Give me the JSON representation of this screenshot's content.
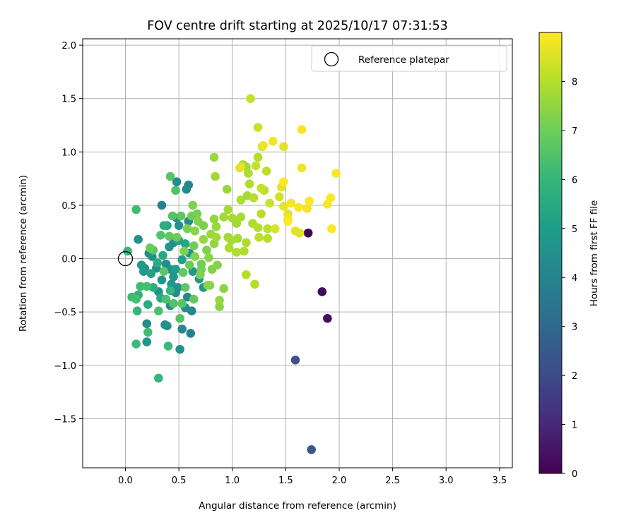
{
  "chart_data": {
    "type": "scatter",
    "title": "FOV centre drift starting at 2025/10/17 07:31:53",
    "xlabel": "Angular distance from reference (arcmin)",
    "ylabel": "Rotation from reference (arcmin)",
    "xlim": [
      -0.4,
      3.62
    ],
    "ylim": [
      -1.96,
      2.06
    ],
    "xticks": [
      0.0,
      0.5,
      1.0,
      1.5,
      2.0,
      2.5,
      3.0,
      3.5
    ],
    "yticks": [
      -1.5,
      -1.0,
      -0.5,
      0.0,
      0.5,
      1.0,
      1.5,
      2.0
    ],
    "xtick_labels": [
      "0.0",
      "0.5",
      "1.0",
      "1.5",
      "2.0",
      "2.5",
      "3.0",
      "3.5"
    ],
    "ytick_labels": [
      "−1.5",
      "−1.0",
      "−0.5",
      "0.0",
      "0.5",
      "1.0",
      "1.5",
      "2.0"
    ],
    "grid": true,
    "legend": {
      "position": "upper-right",
      "entries": [
        "Reference platepar"
      ]
    },
    "reference_point": {
      "x": 0.0,
      "y": 0.0,
      "label": "Reference platepar"
    },
    "colorbar": {
      "label": "Hours from first FF file",
      "colormap": "viridis",
      "range": [
        0,
        9
      ],
      "ticks": [
        0,
        1,
        2,
        3,
        4,
        5,
        6,
        7,
        8
      ],
      "tick_labels": [
        "0",
        "1",
        "2",
        "3",
        "4",
        "5",
        "6",
        "7",
        "8"
      ]
    },
    "points": [
      {
        "x": 1.71,
        "y": 0.24,
        "c": 0.1
      },
      {
        "x": 1.84,
        "y": -0.31,
        "c": 0.2
      },
      {
        "x": 1.89,
        "y": -0.56,
        "c": 0.3
      },
      {
        "x": 1.59,
        "y": -0.95,
        "c": 2.3
      },
      {
        "x": 1.74,
        "y": -1.79,
        "c": 2.5
      },
      {
        "x": 0.61,
        "y": -0.7,
        "c": 4.0
      },
      {
        "x": 0.62,
        "y": -0.49,
        "c": 4.2
      },
      {
        "x": 0.56,
        "y": -0.46,
        "c": 4.4
      },
      {
        "x": 0.51,
        "y": -0.85,
        "c": 4.5
      },
      {
        "x": 0.53,
        "y": -0.66,
        "c": 4.3
      },
      {
        "x": 0.42,
        "y": -0.44,
        "c": 4.4
      },
      {
        "x": 0.39,
        "y": -0.63,
        "c": 4.6
      },
      {
        "x": 0.37,
        "y": -0.62,
        "c": 4.5
      },
      {
        "x": 0.2,
        "y": -0.61,
        "c": 4.4
      },
      {
        "x": 0.2,
        "y": -0.78,
        "c": 4.7
      },
      {
        "x": 0.58,
        "y": -0.36,
        "c": 4.2
      },
      {
        "x": 0.34,
        "y": 0.5,
        "c": 4.0
      },
      {
        "x": 0.59,
        "y": 0.69,
        "c": 4.1
      },
      {
        "x": 0.57,
        "y": 0.65,
        "c": 4.3
      },
      {
        "x": 0.48,
        "y": 0.72,
        "c": 4.4
      },
      {
        "x": 0.59,
        "y": 0.35,
        "c": 4.3
      },
      {
        "x": 0.48,
        "y": 0.38,
        "c": 4.5
      },
      {
        "x": 0.5,
        "y": 0.31,
        "c": 4.6
      },
      {
        "x": 0.6,
        "y": 0.05,
        "c": 4.6
      },
      {
        "x": 0.45,
        "y": 0.15,
        "c": 4.4
      },
      {
        "x": 0.41,
        "y": 0.11,
        "c": 4.6
      },
      {
        "x": 0.22,
        "y": 0.05,
        "c": 4.4
      },
      {
        "x": 0.12,
        "y": 0.18,
        "c": 4.5
      },
      {
        "x": 0.25,
        "y": 0.02,
        "c": 4.6
      },
      {
        "x": 0.38,
        "y": -0.05,
        "c": 4.4
      },
      {
        "x": 0.42,
        "y": -0.1,
        "c": 4.5
      },
      {
        "x": 0.45,
        "y": -0.17,
        "c": 4.7
      },
      {
        "x": 0.49,
        "y": -0.27,
        "c": 4.6
      },
      {
        "x": 0.47,
        "y": -0.32,
        "c": 4.4
      },
      {
        "x": 0.43,
        "y": -0.24,
        "c": 4.8
      },
      {
        "x": 0.31,
        "y": -0.31,
        "c": 4.5
      },
      {
        "x": 0.34,
        "y": -0.2,
        "c": 4.7
      },
      {
        "x": 0.29,
        "y": -0.09,
        "c": 4.6
      },
      {
        "x": 0.18,
        "y": -0.09,
        "c": 4.5
      },
      {
        "x": 0.17,
        "y": -0.12,
        "c": 4.8
      },
      {
        "x": 0.15,
        "y": -0.06,
        "c": 4.9
      },
      {
        "x": 0.73,
        "y": -0.27,
        "c": 4.7
      },
      {
        "x": 0.63,
        "y": -0.12,
        "c": 4.8
      },
      {
        "x": 0.69,
        "y": -0.19,
        "c": 4.9
      },
      {
        "x": 0.47,
        "y": -0.1,
        "c": 5.0
      },
      {
        "x": 0.53,
        "y": -0.01,
        "c": 5.1
      },
      {
        "x": 0.5,
        "y": 0.17,
        "c": 5.2
      },
      {
        "x": 0.56,
        "y": 0.14,
        "c": 5.3
      },
      {
        "x": 0.35,
        "y": 0.03,
        "c": 5.4
      },
      {
        "x": 0.3,
        "y": -0.04,
        "c": 5.5
      },
      {
        "x": 0.24,
        "y": -0.14,
        "c": 5.2
      },
      {
        "x": 0.26,
        "y": -0.27,
        "c": 5.6
      },
      {
        "x": 0.33,
        "y": -0.37,
        "c": 5.4
      },
      {
        "x": 0.21,
        "y": -0.43,
        "c": 5.5
      },
      {
        "x": 0.12,
        "y": -0.34,
        "c": 5.8
      },
      {
        "x": 0.39,
        "y": 0.31,
        "c": 5.3
      },
      {
        "x": 0.36,
        "y": 0.31,
        "c": 5.6
      },
      {
        "x": 0.42,
        "y": -0.3,
        "c": 5.9
      },
      {
        "x": 0.02,
        "y": 0.07,
        "c": 6.0
      },
      {
        "x": 0.1,
        "y": 0.46,
        "c": 6.2
      },
      {
        "x": 0.06,
        "y": -0.36,
        "c": 6.1
      },
      {
        "x": 0.1,
        "y": -0.38,
        "c": 6.3
      },
      {
        "x": 0.11,
        "y": -0.49,
        "c": 6.0
      },
      {
        "x": 0.1,
        "y": -0.8,
        "c": 6.1
      },
      {
        "x": 0.21,
        "y": -0.69,
        "c": 6.2
      },
      {
        "x": 0.31,
        "y": -1.12,
        "c": 6.0
      },
      {
        "x": 0.4,
        "y": -0.82,
        "c": 6.1
      },
      {
        "x": 0.31,
        "y": -0.49,
        "c": 6.4
      },
      {
        "x": 0.14,
        "y": -0.26,
        "c": 6.2
      },
      {
        "x": 0.2,
        "y": -0.26,
        "c": 6.3
      },
      {
        "x": 0.38,
        "y": -0.38,
        "c": 6.4
      },
      {
        "x": 0.45,
        "y": -0.42,
        "c": 6.5
      },
      {
        "x": 0.53,
        "y": -0.42,
        "c": 6.6
      },
      {
        "x": 0.51,
        "y": -0.56,
        "c": 6.5
      },
      {
        "x": 0.56,
        "y": -0.27,
        "c": 6.7
      },
      {
        "x": 0.64,
        "y": -0.38,
        "c": 6.8
      },
      {
        "x": 0.42,
        "y": 0.77,
        "c": 6.6
      },
      {
        "x": 0.47,
        "y": 0.64,
        "c": 6.4
      },
      {
        "x": 0.44,
        "y": 0.4,
        "c": 6.5
      },
      {
        "x": 0.52,
        "y": 0.4,
        "c": 6.7
      },
      {
        "x": 0.33,
        "y": 0.22,
        "c": 6.5
      },
      {
        "x": 0.41,
        "y": 0.21,
        "c": 6.8
      },
      {
        "x": 0.48,
        "y": 0.2,
        "c": 6.9
      },
      {
        "x": 0.26,
        "y": 0.08,
        "c": 6.6
      },
      {
        "x": 0.23,
        "y": 0.1,
        "c": 6.9
      },
      {
        "x": 0.36,
        "y": -0.12,
        "c": 6.7
      },
      {
        "x": 0.54,
        "y": -0.13,
        "c": 6.8
      },
      {
        "x": 0.6,
        "y": -0.06,
        "c": 6.9
      },
      {
        "x": 0.64,
        "y": 0.12,
        "c": 7.0
      },
      {
        "x": 0.58,
        "y": 0.28,
        "c": 7.1
      },
      {
        "x": 0.55,
        "y": 0.07,
        "c": 7.2
      },
      {
        "x": 0.71,
        "y": -0.05,
        "c": 7.0
      },
      {
        "x": 0.71,
        "y": -0.1,
        "c": 7.1
      },
      {
        "x": 0.7,
        "y": -0.15,
        "c": 7.2
      },
      {
        "x": 0.79,
        "y": -0.25,
        "c": 7.3
      },
      {
        "x": 0.77,
        "y": -0.25,
        "c": 7.4
      },
      {
        "x": 0.81,
        "y": -0.1,
        "c": 7.3
      },
      {
        "x": 0.88,
        "y": -0.45,
        "c": 7.4
      },
      {
        "x": 0.88,
        "y": -0.39,
        "c": 7.5
      },
      {
        "x": 0.92,
        "y": -0.28,
        "c": 7.4
      },
      {
        "x": 0.86,
        "y": -0.06,
        "c": 7.3
      },
      {
        "x": 0.63,
        "y": 0.5,
        "c": 7.2
      },
      {
        "x": 0.62,
        "y": 0.4,
        "c": 7.0
      },
      {
        "x": 0.67,
        "y": 0.42,
        "c": 7.1
      },
      {
        "x": 0.68,
        "y": 0.35,
        "c": 7.3
      },
      {
        "x": 0.73,
        "y": 0.31,
        "c": 7.2
      },
      {
        "x": 0.65,
        "y": 0.26,
        "c": 7.4
      },
      {
        "x": 0.73,
        "y": 0.18,
        "c": 7.5
      },
      {
        "x": 0.76,
        "y": 0.08,
        "c": 7.2
      },
      {
        "x": 0.78,
        "y": 0.01,
        "c": 7.4
      },
      {
        "x": 0.65,
        "y": 0.02,
        "c": 7.3
      },
      {
        "x": 0.83,
        "y": 0.37,
        "c": 7.5
      },
      {
        "x": 0.8,
        "y": 0.23,
        "c": 7.6
      },
      {
        "x": 0.83,
        "y": 0.14,
        "c": 7.5
      },
      {
        "x": 0.85,
        "y": 0.2,
        "c": 7.7
      },
      {
        "x": 0.85,
        "y": 0.3,
        "c": 7.6
      },
      {
        "x": 0.83,
        "y": 0.95,
        "c": 7.6
      },
      {
        "x": 0.84,
        "y": 0.77,
        "c": 7.7
      },
      {
        "x": 0.95,
        "y": 0.65,
        "c": 7.6
      },
      {
        "x": 0.92,
        "y": 0.39,
        "c": 7.7
      },
      {
        "x": 0.96,
        "y": 0.46,
        "c": 7.8
      },
      {
        "x": 1.0,
        "y": 0.38,
        "c": 7.8
      },
      {
        "x": 0.96,
        "y": 0.2,
        "c": 7.7
      },
      {
        "x": 0.99,
        "y": 0.17,
        "c": 7.8
      },
      {
        "x": 0.97,
        "y": 0.1,
        "c": 7.9
      },
      {
        "x": 1.04,
        "y": 0.06,
        "c": 7.9
      },
      {
        "x": 1.08,
        "y": 0.39,
        "c": 7.8
      },
      {
        "x": 1.13,
        "y": 0.15,
        "c": 7.9
      },
      {
        "x": 1.04,
        "y": 0.33,
        "c": 7.7
      },
      {
        "x": 1.05,
        "y": 0.19,
        "c": 7.8
      },
      {
        "x": 1.11,
        "y": 0.07,
        "c": 7.9
      },
      {
        "x": 1.13,
        "y": -0.15,
        "c": 8.0
      },
      {
        "x": 1.21,
        "y": -0.24,
        "c": 8.0
      },
      {
        "x": 1.08,
        "y": 0.55,
        "c": 7.9
      },
      {
        "x": 1.14,
        "y": 0.59,
        "c": 7.8
      },
      {
        "x": 1.16,
        "y": 0.7,
        "c": 7.9
      },
      {
        "x": 1.13,
        "y": 0.86,
        "c": 7.7
      },
      {
        "x": 1.1,
        "y": 0.88,
        "c": 7.8
      },
      {
        "x": 1.15,
        "y": 0.8,
        "c": 7.9
      },
      {
        "x": 1.2,
        "y": 0.57,
        "c": 8.0
      },
      {
        "x": 1.19,
        "y": 0.33,
        "c": 7.9
      },
      {
        "x": 1.24,
        "y": 0.29,
        "c": 8.0
      },
      {
        "x": 1.25,
        "y": 0.2,
        "c": 8.1
      },
      {
        "x": 1.27,
        "y": 0.42,
        "c": 8.0
      },
      {
        "x": 1.3,
        "y": 0.64,
        "c": 8.1
      },
      {
        "x": 1.27,
        "y": 0.66,
        "c": 8.2
      },
      {
        "x": 1.33,
        "y": 0.28,
        "c": 8.1
      },
      {
        "x": 1.33,
        "y": 0.19,
        "c": 8.0
      },
      {
        "x": 1.24,
        "y": 0.95,
        "c": 8.0
      },
      {
        "x": 1.32,
        "y": 0.82,
        "c": 8.1
      },
      {
        "x": 1.22,
        "y": 0.87,
        "c": 8.2
      },
      {
        "x": 1.17,
        "y": 1.5,
        "c": 8.2
      },
      {
        "x": 1.24,
        "y": 1.23,
        "c": 8.3
      },
      {
        "x": 1.28,
        "y": 1.05,
        "c": 8.4
      },
      {
        "x": 1.07,
        "y": 0.85,
        "c": 8.5
      },
      {
        "x": 1.35,
        "y": 0.52,
        "c": 8.3
      },
      {
        "x": 1.44,
        "y": 0.58,
        "c": 8.4
      },
      {
        "x": 1.4,
        "y": 0.28,
        "c": 8.5
      },
      {
        "x": 1.46,
        "y": 0.67,
        "c": 8.6
      },
      {
        "x": 1.48,
        "y": 0.49,
        "c": 8.7
      },
      {
        "x": 1.52,
        "y": 0.42,
        "c": 8.6
      },
      {
        "x": 1.59,
        "y": 0.26,
        "c": 8.7
      },
      {
        "x": 1.52,
        "y": 0.37,
        "c": 8.8
      },
      {
        "x": 1.48,
        "y": 1.05,
        "c": 8.6
      },
      {
        "x": 1.38,
        "y": 1.1,
        "c": 8.8
      },
      {
        "x": 1.65,
        "y": 1.21,
        "c": 8.9
      },
      {
        "x": 1.65,
        "y": 0.85,
        "c": 8.8
      },
      {
        "x": 1.62,
        "y": 0.48,
        "c": 8.9
      },
      {
        "x": 1.7,
        "y": 0.47,
        "c": 8.8
      },
      {
        "x": 1.72,
        "y": 0.54,
        "c": 9.0
      },
      {
        "x": 1.55,
        "y": 0.52,
        "c": 8.9
      },
      {
        "x": 1.52,
        "y": 0.35,
        "c": 9.0
      },
      {
        "x": 1.48,
        "y": 0.72,
        "c": 9.0
      },
      {
        "x": 1.89,
        "y": 0.51,
        "c": 8.9
      },
      {
        "x": 1.92,
        "y": 0.57,
        "c": 9.0
      },
      {
        "x": 1.93,
        "y": 0.28,
        "c": 9.0
      },
      {
        "x": 1.97,
        "y": 0.8,
        "c": 9.0
      },
      {
        "x": 1.29,
        "y": 1.06,
        "c": 8.8
      },
      {
        "x": 1.08,
        "y": 0.86,
        "c": 8.7
      },
      {
        "x": 1.63,
        "y": 0.24,
        "c": 8.6
      }
    ]
  }
}
